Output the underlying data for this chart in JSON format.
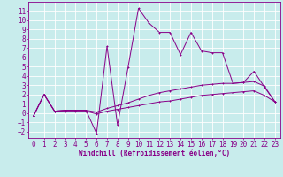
{
  "background_color": "#c8ecec",
  "grid_color": "#ffffff",
  "line_color": "#880088",
  "xlabel": "Windchill (Refroidissement éolien,°C)",
  "xlabel_fontsize": 5.5,
  "yticks": [
    -2,
    -1,
    0,
    1,
    2,
    3,
    4,
    5,
    6,
    7,
    8,
    9,
    10,
    11
  ],
  "xticks": [
    0,
    1,
    2,
    3,
    4,
    5,
    6,
    7,
    8,
    9,
    10,
    11,
    12,
    13,
    14,
    15,
    16,
    17,
    18,
    19,
    20,
    21,
    22,
    23
  ],
  "ylim": [
    -2.7,
    12.0
  ],
  "xlim": [
    -0.5,
    23.5
  ],
  "s_main_x": [
    0,
    1,
    2,
    3,
    4,
    5,
    6,
    7,
    8,
    9,
    10,
    11,
    12,
    13,
    14,
    15,
    16,
    17,
    18,
    19,
    20,
    21,
    22,
    23
  ],
  "s_main_y": [
    -0.3,
    2.0,
    0.2,
    0.3,
    0.3,
    0.3,
    -2.2,
    7.2,
    -1.3,
    4.9,
    11.3,
    9.7,
    8.7,
    8.7,
    6.3,
    8.7,
    6.7,
    6.5,
    6.5,
    3.2,
    3.3,
    4.5,
    2.8,
    1.2
  ],
  "s_mid_x": [
    0,
    1,
    2,
    3,
    4,
    5,
    6,
    7,
    8,
    9,
    10,
    11,
    12,
    13,
    14,
    15,
    16,
    17,
    18,
    19,
    20,
    21,
    22,
    23
  ],
  "s_mid_y": [
    -0.3,
    2.0,
    0.2,
    0.3,
    0.3,
    0.3,
    0.1,
    0.5,
    0.8,
    1.1,
    1.5,
    1.9,
    2.2,
    2.4,
    2.6,
    2.8,
    3.0,
    3.1,
    3.2,
    3.2,
    3.3,
    3.4,
    2.9,
    1.2
  ],
  "s_flat_x": [
    0,
    1,
    2,
    3,
    4,
    5,
    6,
    7,
    8,
    9,
    10,
    11,
    12,
    13,
    14,
    15,
    16,
    17,
    18,
    19,
    20,
    21,
    22,
    23
  ],
  "s_flat_y": [
    -0.3,
    2.0,
    0.2,
    0.2,
    0.2,
    0.2,
    -0.1,
    0.2,
    0.4,
    0.6,
    0.8,
    1.0,
    1.2,
    1.3,
    1.5,
    1.7,
    1.9,
    2.0,
    2.1,
    2.2,
    2.3,
    2.4,
    1.9,
    1.2
  ],
  "tick_fontsize": 5.5,
  "tick_color": "#880088",
  "lw": 0.7,
  "ms": 2.0
}
